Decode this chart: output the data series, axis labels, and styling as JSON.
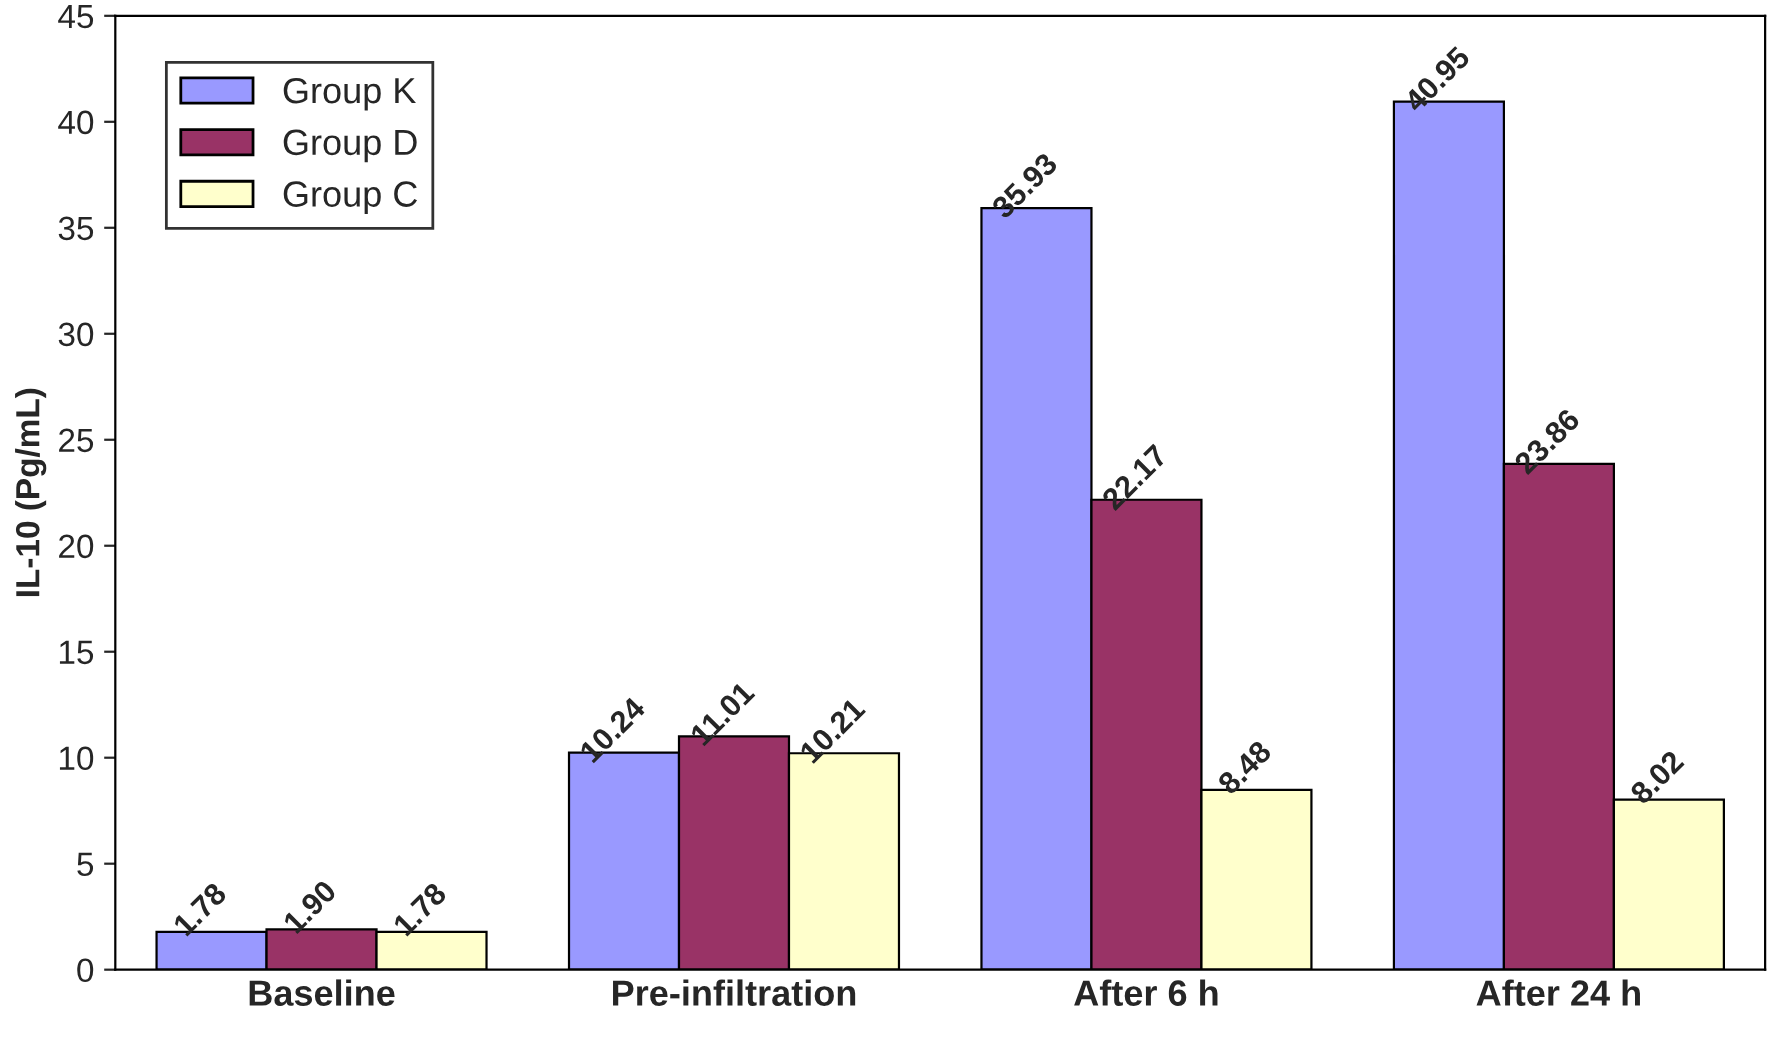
{
  "chart_data": {
    "type": "bar",
    "ylabel": "IL-10 (Pg/mL)",
    "categories": [
      "Baseline",
      "Pre-infiltration",
      "After 6 h",
      "After 24 h"
    ],
    "series": [
      {
        "name": "Group K",
        "color": "#9999ff",
        "values": [
          1.78,
          10.24,
          35.93,
          40.95
        ],
        "value_labels": [
          "1.78",
          "10.24",
          "35.93",
          "40.95"
        ]
      },
      {
        "name": "Group D",
        "color": "#993366",
        "values": [
          1.9,
          11.01,
          22.17,
          23.86
        ],
        "value_labels": [
          "1.90",
          "11.01",
          "22.17",
          "23.86"
        ]
      },
      {
        "name": "Group C",
        "color": "#ffffcc",
        "values": [
          1.78,
          10.21,
          8.48,
          8.02
        ],
        "value_labels": [
          "1.78",
          "10.21",
          "8.48",
          "8.02"
        ]
      }
    ],
    "ylim": [
      0,
      45
    ],
    "yticks": [
      0,
      5,
      10,
      15,
      20,
      25,
      30,
      35,
      40,
      45
    ],
    "grid": false,
    "legend": "top left"
  }
}
